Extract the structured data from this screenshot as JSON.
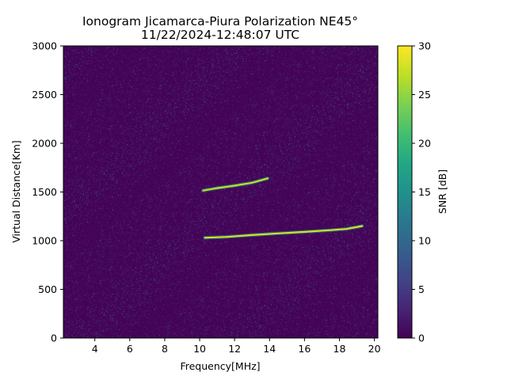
{
  "chart_data": {
    "type": "heatmap",
    "title": "Ionogram Jicamarca-Piura Polarization NE45°",
    "subtitle": "11/22/2024-12:48:07 UTC",
    "xlabel": "Frequency[MHz]",
    "ylabel": "Virtual Distance[Km]",
    "xlim": [
      2.2,
      20.2
    ],
    "ylim": [
      0,
      3000
    ],
    "x_ticks": [
      4,
      6,
      8,
      10,
      12,
      14,
      16,
      18,
      20
    ],
    "y_ticks": [
      0,
      500,
      1000,
      1500,
      2000,
      2500,
      3000
    ],
    "grid": false,
    "colorbar": {
      "label": "SNR [dB]",
      "range": [
        0,
        30
      ],
      "ticks": [
        0,
        5,
        10,
        15,
        20,
        25,
        30
      ],
      "colormap": "viridis"
    },
    "traces": [
      {
        "points": [
          [
            10.3,
            1030
          ],
          [
            11.5,
            1038
          ],
          [
            13.0,
            1058
          ],
          [
            14.5,
            1075
          ],
          [
            16.0,
            1090
          ],
          [
            17.5,
            1108
          ],
          [
            18.4,
            1120
          ],
          [
            19.3,
            1150
          ]
        ],
        "snr_db": 28
      },
      {
        "points": [
          [
            10.2,
            1515
          ],
          [
            11.0,
            1540
          ],
          [
            12.0,
            1565
          ],
          [
            13.0,
            1595
          ],
          [
            13.9,
            1640
          ]
        ],
        "snr_db": 27
      }
    ],
    "noise_floor_db": 1
  }
}
